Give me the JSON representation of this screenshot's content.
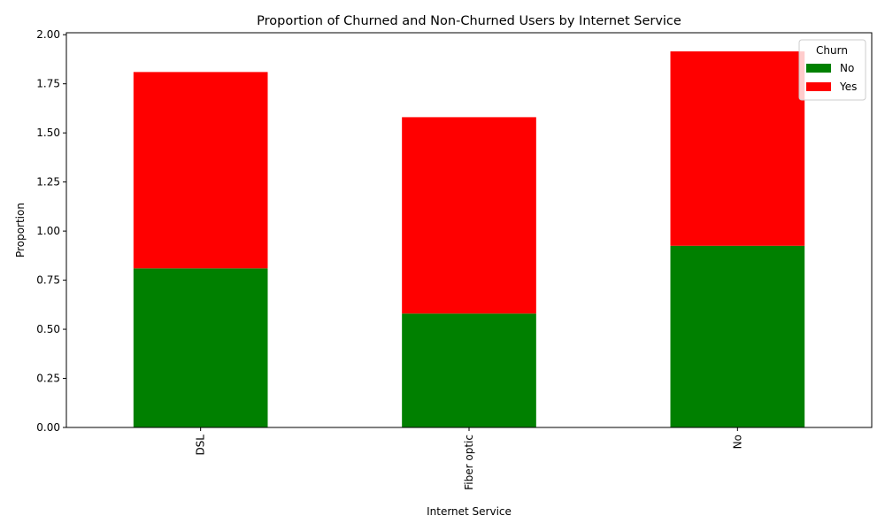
{
  "chart_data": {
    "type": "bar",
    "stacked": true,
    "title": "Proportion of Churned and Non-Churned Users by Internet Service",
    "xlabel": "Internet Service",
    "ylabel": "Proportion",
    "categories": [
      "DSL",
      "Fiber optic",
      "No"
    ],
    "series": [
      {
        "name": "No",
        "color": "#008000",
        "values": [
          0.81,
          0.58,
          0.925
        ]
      },
      {
        "name": "Yes",
        "color": "#ff0000",
        "values": [
          1.0,
          1.0,
          0.99
        ]
      }
    ],
    "ylim": [
      0,
      2.01
    ],
    "yticks": [
      "0.00",
      "0.25",
      "0.50",
      "0.75",
      "1.00",
      "1.25",
      "1.50",
      "1.75",
      "2.00"
    ],
    "xtick_rotation": 90,
    "grid": false,
    "legend": {
      "title": "Churn",
      "placement": "top-right"
    }
  }
}
